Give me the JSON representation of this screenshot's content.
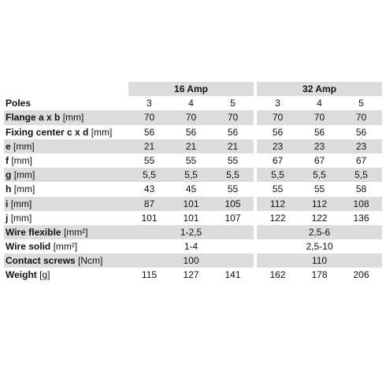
{
  "table": {
    "groups": [
      "16 Amp",
      "32 Amp"
    ],
    "rows": [
      {
        "label": "Poles",
        "cells": [
          "3",
          "4",
          "5",
          "3",
          "4",
          "5"
        ]
      },
      {
        "label": "Flange a x b",
        "unit": "[mm]",
        "cells": [
          "70",
          "70",
          "70",
          "70",
          "70",
          "70"
        ]
      },
      {
        "label": "Fixing center c x d",
        "unit": "[mm]",
        "cells": [
          "56",
          "56",
          "56",
          "56",
          "56",
          "56"
        ]
      },
      {
        "label": "e",
        "unit": "[mm]",
        "cells": [
          "21",
          "21",
          "21",
          "23",
          "23",
          "23"
        ]
      },
      {
        "label": "f",
        "unit": "[mm]",
        "cells": [
          "55",
          "55",
          "55",
          "67",
          "67",
          "67"
        ]
      },
      {
        "label": "g",
        "unit": "[mm]",
        "cells": [
          "5,5",
          "5,5",
          "5,5",
          "5,5",
          "5,5",
          "5,5"
        ]
      },
      {
        "label": "h",
        "unit": "[mm]",
        "cells": [
          "43",
          "45",
          "55",
          "55",
          "55",
          "58"
        ]
      },
      {
        "label": "i",
        "unit": "[mm]",
        "cells": [
          "87",
          "101",
          "105",
          "112",
          "112",
          "108"
        ]
      },
      {
        "label": "j",
        "unit": "[mm]",
        "cells": [
          "101",
          "101",
          "107",
          "122",
          "122",
          "136"
        ]
      },
      {
        "label": "Wire flexible",
        "unit": "[mm²]",
        "cells": [
          "1-2,5",
          "2,5-6"
        ]
      },
      {
        "label": "Wire solid",
        "unit": "[mm²]",
        "cells": [
          "1-4",
          "2,5-10"
        ]
      },
      {
        "label": "Contact screws",
        "unit": "[Ncm]",
        "cells": [
          "100",
          "110"
        ]
      },
      {
        "label": "Weight",
        "unit": "[g]",
        "cells": [
          "115",
          "127",
          "141",
          "162",
          "178",
          "206"
        ]
      }
    ]
  }
}
